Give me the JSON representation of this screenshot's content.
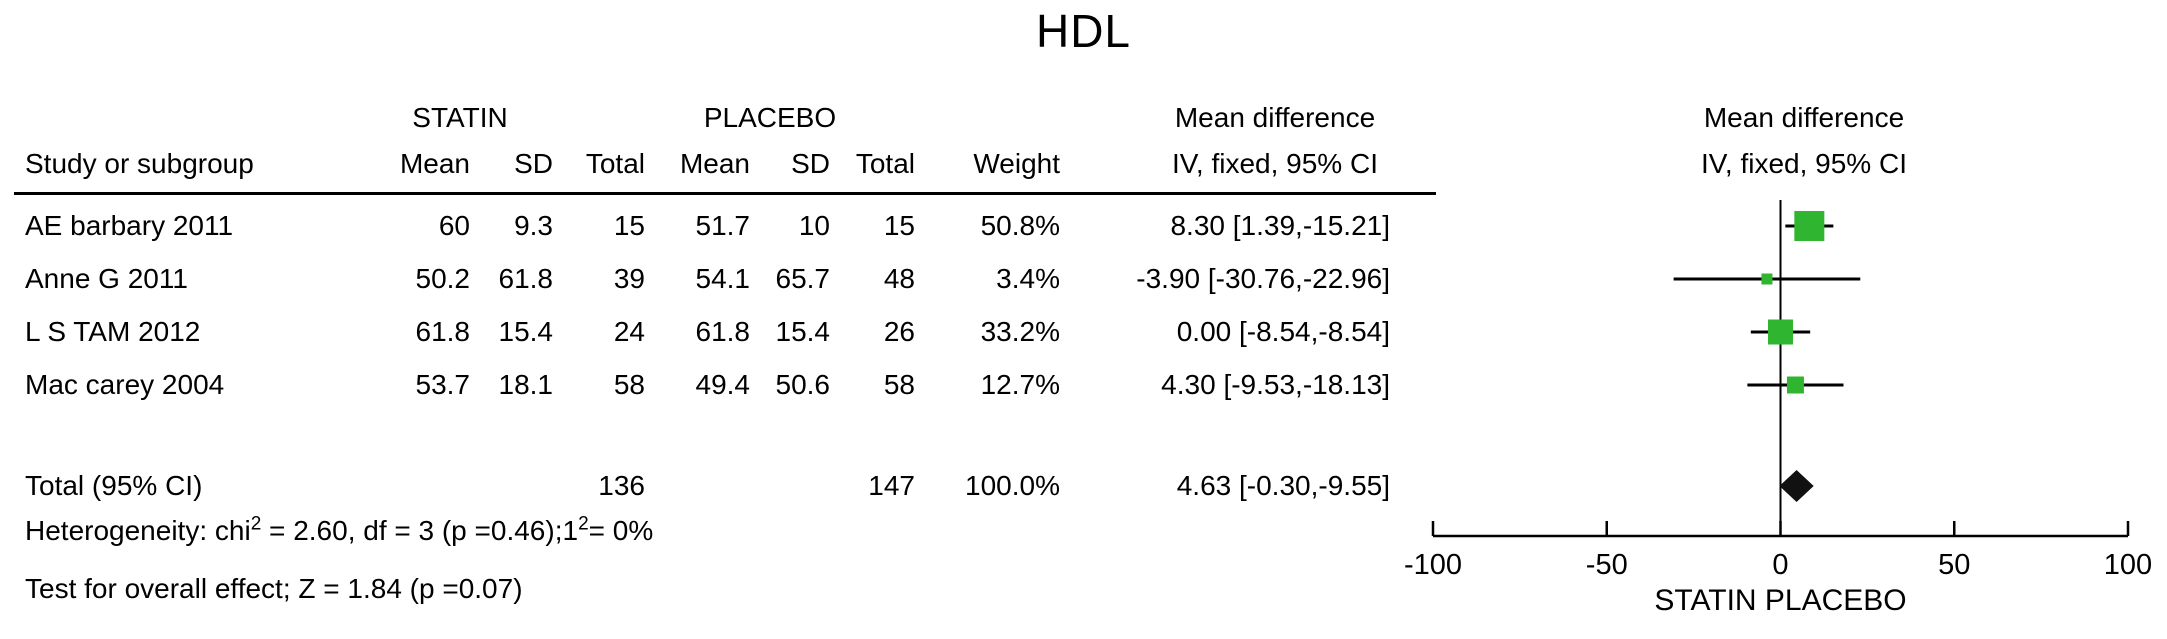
{
  "title": "HDL",
  "header": {
    "study": "Study or subgroup",
    "group1": "STATIN",
    "group2": "PLACEBO",
    "mean": "Mean",
    "sd": "SD",
    "total": "Total",
    "weight": "Weight",
    "md_title": "Mean difference",
    "md_sub": "IV, fixed, 95% CI",
    "plot_title": "Mean difference",
    "plot_sub": "IV, fixed, 95% CI"
  },
  "rows": [
    {
      "study": "AE barbary 2011",
      "s_mean": "60",
      "s_sd": "9.3",
      "s_total": "15",
      "p_mean": "51.7",
      "p_sd": "10",
      "p_total": "15",
      "weight": "50.8%",
      "md": "8.30 [1.39,-15.21]"
    },
    {
      "study": "Anne G 2011",
      "s_mean": "50.2",
      "s_sd": "61.8",
      "s_total": "39",
      "p_mean": "54.1",
      "p_sd": "65.7",
      "p_total": "48",
      "weight": "3.4%",
      "md": "-3.90 [-30.76,-22.96]"
    },
    {
      "study": "L S TAM 2012",
      "s_mean": "61.8",
      "s_sd": "15.4",
      "s_total": "24",
      "p_mean": "61.8",
      "p_sd": "15.4",
      "p_total": "26",
      "weight": "33.2%",
      "md": "0.00 [-8.54,-8.54]"
    },
    {
      "study": "Mac carey 2004",
      "s_mean": "53.7",
      "s_sd": "18.1",
      "s_total": "58",
      "p_mean": "49.4",
      "p_sd": "50.6",
      "p_total": "58",
      "weight": "12.7%",
      "md": "4.30 [-9.53,-18.13]"
    }
  ],
  "total_row": {
    "label": "Total (95% CI)",
    "s_total": "136",
    "p_total": "147",
    "weight": "100.0%",
    "md": "4.63 [-0.30,-9.55]"
  },
  "footer": {
    "het_pre": "Heterogeneity: chi",
    "het_sup1": "2",
    "het_mid": " = 2.60, df = 3 (p =0.46);1",
    "het_sup2": "2",
    "het_end": "= 0%",
    "test": "Test for overall effect; Z = 1.84 (p =0.07)"
  },
  "chart_data": {
    "type": "forest",
    "title": "HDL",
    "xlabel": "STATIN PLACEBO",
    "effect_label": "Mean difference, IV, fixed, 95% CI",
    "xlim": [
      -100,
      100
    ],
    "axis_ticks": [
      -100,
      -50,
      0,
      50,
      100
    ],
    "marker_color": "#2fb52f",
    "studies": [
      {
        "name": "AE barbary 2011",
        "md": 8.3,
        "ci_low": 1.39,
        "ci_high": 15.21,
        "weight": 50.8
      },
      {
        "name": "Anne G 2011",
        "md": -3.9,
        "ci_low": -30.76,
        "ci_high": 22.96,
        "weight": 3.4
      },
      {
        "name": "L S TAM 2012",
        "md": 0.0,
        "ci_low": -8.54,
        "ci_high": 8.54,
        "weight": 33.2
      },
      {
        "name": "Mac carey 2004",
        "md": 4.3,
        "ci_low": -9.53,
        "ci_high": 18.13,
        "weight": 12.7
      }
    ],
    "total": {
      "name": "Total (95% CI)",
      "md": 4.63,
      "ci_low": -0.3,
      "ci_high": 9.55,
      "weight": 100.0
    }
  }
}
